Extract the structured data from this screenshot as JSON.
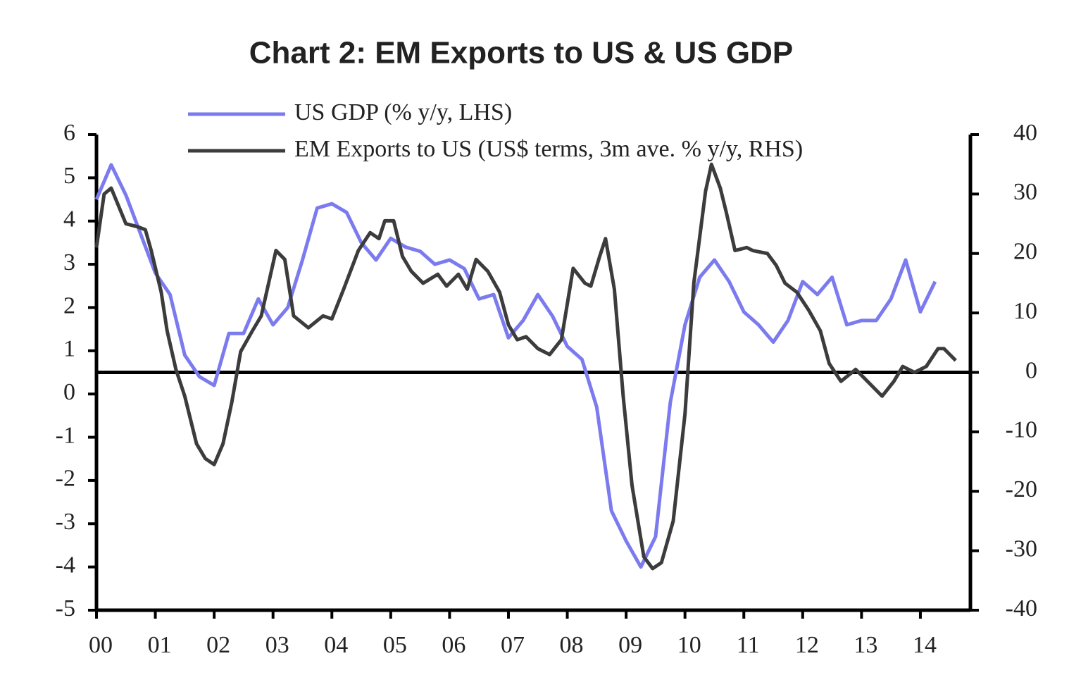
{
  "chart_data": {
    "type": "line",
    "title": "Chart 2: EM Exports to US & US GDP",
    "xlim": [
      0,
      14.85
    ],
    "xticks": [
      {
        "value": 0,
        "label": "00"
      },
      {
        "value": 1,
        "label": "01"
      },
      {
        "value": 2,
        "label": "02"
      },
      {
        "value": 3,
        "label": "03"
      },
      {
        "value": 4,
        "label": "04"
      },
      {
        "value": 5,
        "label": "05"
      },
      {
        "value": 6,
        "label": "06"
      },
      {
        "value": 7,
        "label": "07"
      },
      {
        "value": 8,
        "label": "08"
      },
      {
        "value": 9,
        "label": "09"
      },
      {
        "value": 10,
        "label": "10"
      },
      {
        "value": 11,
        "label": "11"
      },
      {
        "value": 12,
        "label": "12"
      },
      {
        "value": 13,
        "label": "13"
      },
      {
        "value": 14,
        "label": "14"
      }
    ],
    "ylim": [
      -5,
      6
    ],
    "yticks": [
      -5,
      -4,
      -3,
      -2,
      -1,
      0,
      1,
      2,
      3,
      4,
      5,
      6
    ],
    "y2lim": [
      -40,
      40
    ],
    "y2ticks": [
      -40,
      -30,
      -20,
      -10,
      0,
      10,
      20,
      30,
      40
    ],
    "legend": "top",
    "series": [
      {
        "name": "US GDP (% y/y, LHS)",
        "color": "#7b7bef",
        "x": [
          0,
          0.25,
          0.5,
          0.75,
          1,
          1.25,
          1.5,
          1.75,
          2,
          2.25,
          2.5,
          2.75,
          3,
          3.25,
          3.5,
          3.75,
          4,
          4.25,
          4.5,
          4.75,
          5,
          5.25,
          5.5,
          5.75,
          6,
          6.25,
          6.5,
          6.75,
          7,
          7.25,
          7.5,
          7.75,
          8,
          8.25,
          8.5,
          8.75,
          9,
          9.25,
          9.5,
          9.75,
          10,
          10.25,
          10.5,
          10.75,
          11,
          11.25,
          11.5,
          11.75,
          12,
          12.25,
          12.5,
          12.75,
          13,
          13.25,
          13.5,
          13.75,
          14,
          14.25
        ],
        "values": [
          4.5,
          5.3,
          4.6,
          3.7,
          2.8,
          2.3,
          0.9,
          0.4,
          0.2,
          1.4,
          1.4,
          2.2,
          1.6,
          2.0,
          3.1,
          4.3,
          4.4,
          4.2,
          3.5,
          3.1,
          3.6,
          3.4,
          3.3,
          3.0,
          3.1,
          2.9,
          2.2,
          2.3,
          1.3,
          1.7,
          2.3,
          1.8,
          1.1,
          0.8,
          -0.3,
          -2.7,
          -3.4,
          -4.0,
          -3.3,
          -0.2,
          1.6,
          2.7,
          3.1,
          2.6,
          1.9,
          1.6,
          1.2,
          1.7,
          2.6,
          2.3,
          2.7,
          1.6,
          1.7,
          1.7,
          2.2,
          3.1,
          1.9,
          2.6
        ]
      },
      {
        "name": "EM Exports to US (US$ terms, 3m ave. % y/y, RHS)",
        "color": "#3c3c3c",
        "axis": "y2",
        "x": [
          0,
          0.13,
          0.25,
          0.5,
          0.7,
          0.83,
          0.93,
          1.1,
          1.2,
          1.35,
          1.5,
          1.7,
          1.85,
          2.0,
          2.15,
          2.3,
          2.45,
          2.65,
          2.8,
          3.05,
          3.2,
          3.35,
          3.6,
          3.85,
          4.0,
          4.2,
          4.45,
          4.65,
          4.8,
          4.9,
          5.05,
          5.2,
          5.35,
          5.55,
          5.8,
          5.95,
          6.15,
          6.3,
          6.45,
          6.65,
          6.85,
          7.0,
          7.15,
          7.3,
          7.5,
          7.7,
          7.9,
          8.1,
          8.3,
          8.4,
          8.55,
          8.65,
          8.8,
          8.95,
          9.1,
          9.3,
          9.45,
          9.6,
          9.8,
          10.0,
          10.15,
          10.35,
          10.45,
          10.6,
          10.7,
          10.85,
          11.05,
          11.15,
          11.4,
          11.55,
          11.7,
          11.9,
          12.1,
          12.3,
          12.45,
          12.65,
          12.9,
          13.1,
          13.35,
          13.55,
          13.7,
          13.9,
          14.1,
          14.3,
          14.4,
          14.6
        ],
        "values": [
          21,
          30,
          31,
          25,
          24.5,
          24,
          20.5,
          13.5,
          7,
          0.5,
          -4,
          -12,
          -14.5,
          -15.5,
          -12,
          -5,
          3.5,
          7,
          9.5,
          20.5,
          19,
          9.5,
          7.5,
          9.5,
          9,
          14,
          20.5,
          23.5,
          22.5,
          25.5,
          25.5,
          19.5,
          17,
          15,
          16.5,
          14.5,
          16.5,
          14,
          19,
          17,
          13.5,
          8,
          5.5,
          6,
          4,
          3,
          5.5,
          17.5,
          15,
          14.5,
          19.5,
          22.5,
          14,
          -4,
          -19,
          -31,
          -33,
          -32,
          -25,
          -7,
          15,
          30.5,
          35,
          31,
          27,
          20.5,
          21,
          20.5,
          20,
          18,
          15,
          13.5,
          10.5,
          7,
          1.5,
          -1.5,
          0.5,
          -1.5,
          -4,
          -1.5,
          1,
          0,
          1,
          4,
          4,
          2
        ]
      }
    ]
  }
}
